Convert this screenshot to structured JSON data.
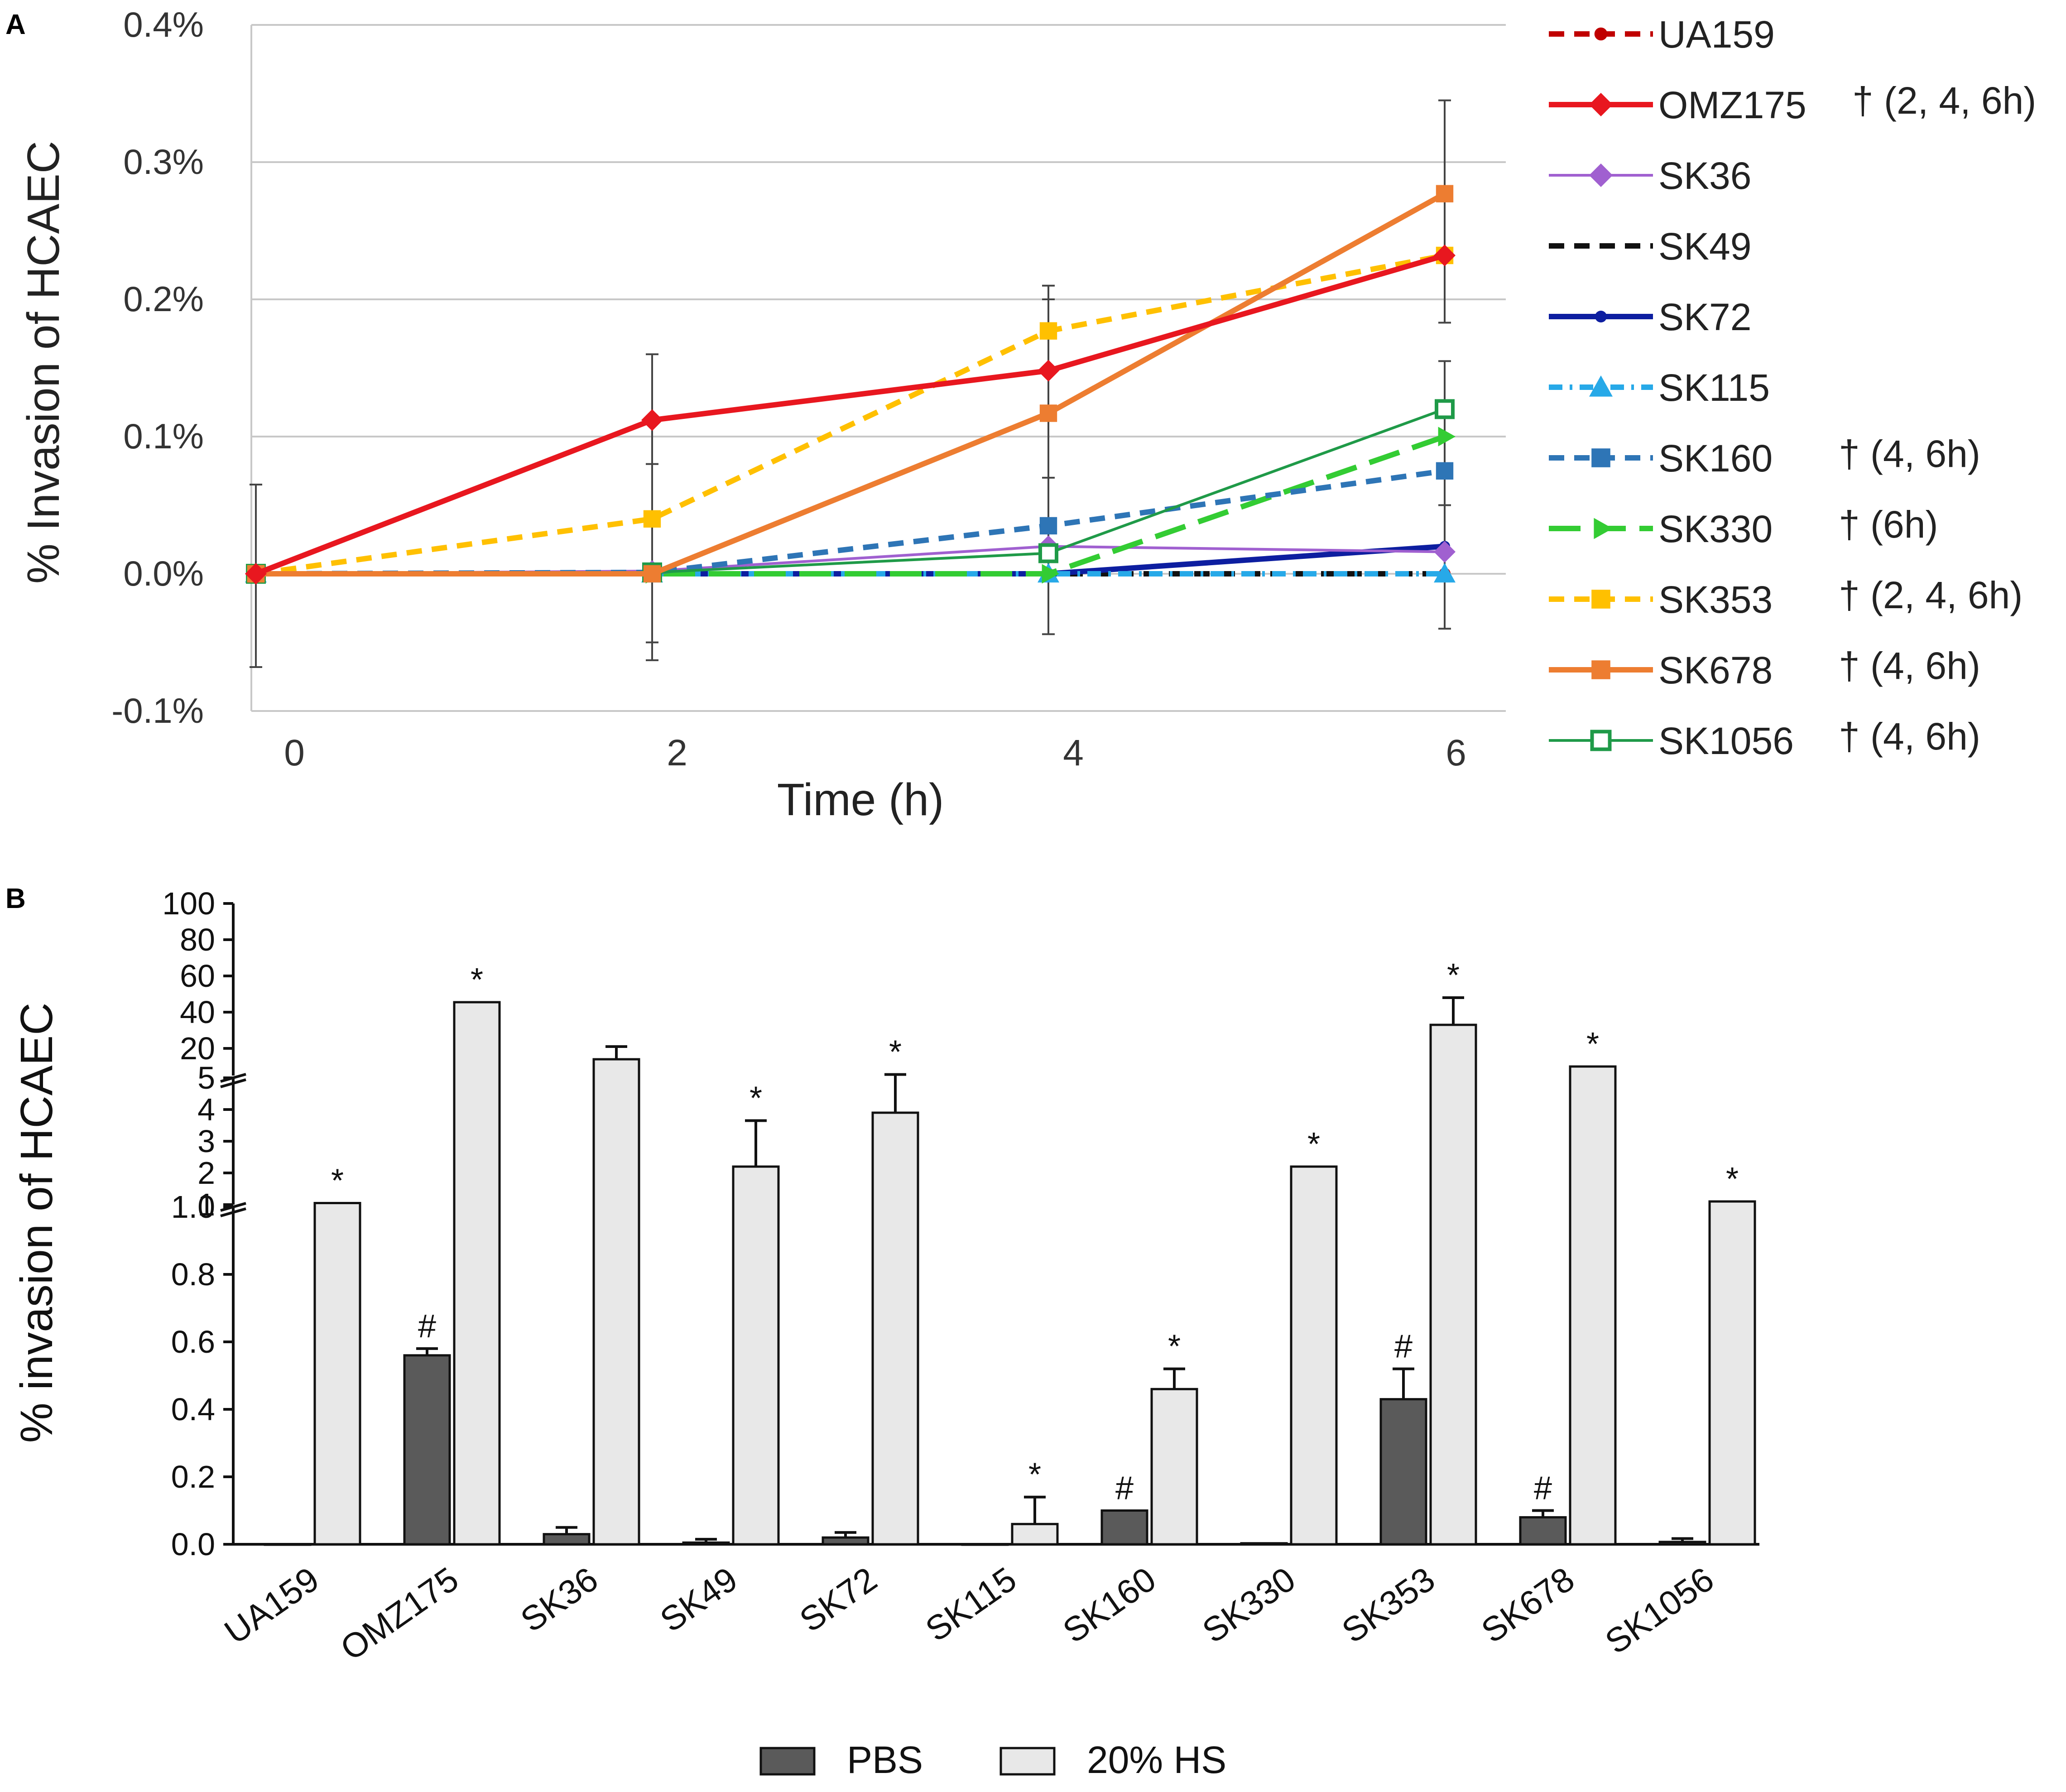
{
  "chart_data": [
    {
      "panel": "A",
      "type": "line",
      "xlabel": "Time (h)",
      "ylabel": "% Invasion of HCAEC",
      "x": [
        0,
        2,
        4,
        6
      ],
      "xticks": [
        "0",
        "2",
        "4",
        "6"
      ],
      "ylim": [
        -0.1,
        0.4
      ],
      "yticks": [
        "-0.1%",
        "0.0%",
        "0.1%",
        "0.2%",
        "0.3%",
        "0.4%"
      ],
      "grid": true,
      "legend_position": "right",
      "series": [
        {
          "name": "UA159",
          "values": [
            0,
            0,
            0,
            0
          ],
          "color": "#c00000",
          "line": "dash",
          "marker": "circle",
          "note": ""
        },
        {
          "name": "OMZ175",
          "values": [
            0,
            0.112,
            0.148,
            0.232
          ],
          "color": "#e8171f",
          "line": "solid",
          "marker": "diamond",
          "note": "† (2, 4, 6h)"
        },
        {
          "name": "SK36",
          "values": [
            0,
            0.002,
            0.02,
            0.016
          ],
          "color": "#a060d0",
          "line": "solid-thin",
          "marker": "diamond",
          "note": ""
        },
        {
          "name": "SK49",
          "values": [
            0,
            0,
            0,
            0
          ],
          "color": "#111111",
          "line": "dash",
          "marker": "none",
          "note": ""
        },
        {
          "name": "SK72",
          "values": [
            0,
            0,
            0,
            0.02
          ],
          "color": "#0d1ea0",
          "line": "solid",
          "marker": "dot",
          "note": ""
        },
        {
          "name": "SK115",
          "values": [
            0,
            0,
            0,
            0
          ],
          "color": "#27a9e8",
          "line": "dashdot",
          "marker": "triangle",
          "note": ""
        },
        {
          "name": "SK160",
          "values": [
            0,
            0.001,
            0.035,
            0.075
          ],
          "color": "#2e75b6",
          "line": "dash",
          "marker": "square",
          "note": "† (4, 6h)"
        },
        {
          "name": "SK330",
          "values": [
            0,
            0,
            0,
            0.1
          ],
          "color": "#33cc33",
          "line": "longdash",
          "marker": "arrow",
          "note": "† (6h)"
        },
        {
          "name": "SK353",
          "values": [
            0,
            0.04,
            0.177,
            0.232
          ],
          "color": "#ffc000",
          "line": "dash",
          "marker": "square",
          "note": "† (2, 4, 6h)"
        },
        {
          "name": "SK678",
          "values": [
            0,
            0,
            0.117,
            0.277
          ],
          "color": "#ed7d31",
          "line": "solid",
          "marker": "square",
          "note": "† (4, 6h)"
        },
        {
          "name": "SK1056",
          "values": [
            0,
            0.001,
            0.015,
            0.12
          ],
          "color": "#1f9a48",
          "line": "solid-thin",
          "marker": "open-square",
          "note": "† (4, 6h)"
        }
      ]
    },
    {
      "panel": "B",
      "type": "bar",
      "ylabel": "% invasion of HCAEC",
      "categories": [
        "UA159",
        "OMZ175",
        "SK36",
        "SK49",
        "SK72",
        "SK115",
        "SK160",
        "SK330",
        "SK353",
        "SK678",
        "SK1056"
      ],
      "y_axis_segments": [
        {
          "range": [
            0,
            1.0
          ],
          "ticks": [
            "0.0",
            "0.2",
            "0.4",
            "0.6",
            "0.8",
            "1.0"
          ]
        },
        {
          "range": [
            1,
            5
          ],
          "ticks": [
            "1",
            "2",
            "3",
            "4",
            "5"
          ]
        },
        {
          "range": [
            5,
            100
          ],
          "ticks": [
            "20",
            "40",
            "60",
            "80",
            "100"
          ]
        }
      ],
      "series": [
        {
          "name": "PBS",
          "color": "#5a5a5a",
          "values": [
            0,
            0.56,
            0.03,
            0.005,
            0.02,
            0,
            0.1,
            0.003,
            0.43,
            0.08,
            0.007
          ],
          "errors": [
            0,
            0.02,
            0.02,
            0.01,
            0.015,
            0,
            0,
            0,
            0.09,
            0.02,
            0.01
          ],
          "labels": [
            "",
            "#",
            "",
            "",
            "",
            "",
            "#",
            "",
            "#",
            "#",
            ""
          ]
        },
        {
          "name": "20% HS",
          "color": "#e8e8e8",
          "values": [
            1.05,
            45.5,
            14,
            2.2,
            3.9,
            0.06,
            0.46,
            2.2,
            33,
            10,
            1.1
          ],
          "errors": [
            0,
            0,
            7,
            1.45,
            1.7,
            0.08,
            0.06,
            0,
            15,
            0,
            0
          ],
          "labels": [
            "*",
            "*",
            "",
            "*",
            "*",
            "*",
            "*",
            "*",
            "*",
            "*",
            "*"
          ]
        }
      ],
      "legend_position": "bottom"
    }
  ],
  "panels": {
    "a": "A",
    "b": "B"
  }
}
